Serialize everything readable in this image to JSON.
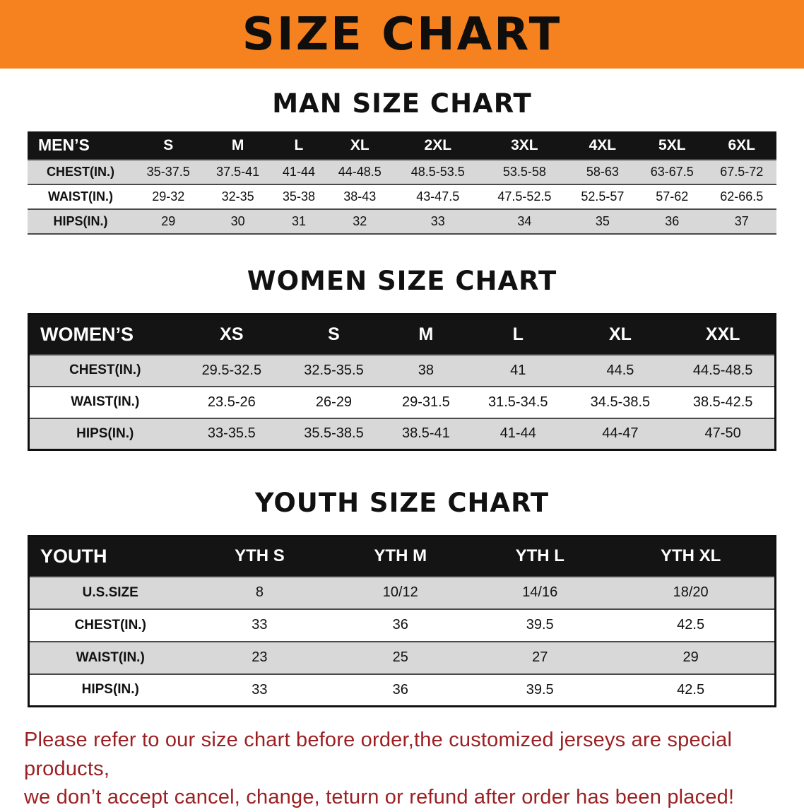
{
  "banner": {
    "title": "SIZE CHART",
    "bg_color": "#f5821f",
    "text_color": "#0f0e0c"
  },
  "men": {
    "heading": "MAN SIZE CHART",
    "header": [
      "MEN’S",
      "S",
      "M",
      "L",
      "XL",
      "2XL",
      "3XL",
      "4XL",
      "5XL",
      "6XL"
    ],
    "rows": [
      [
        "CHEST(IN.)",
        "35-37.5",
        "37.5-41",
        "41-44",
        "44-48.5",
        "48.5-53.5",
        "53.5-58",
        "58-63",
        "63-67.5",
        "67.5-72"
      ],
      [
        "WAIST(IN.)",
        "29-32",
        "32-35",
        "35-38",
        "38-43",
        "43-47.5",
        "47.5-52.5",
        "52.5-57",
        "57-62",
        "62-66.5"
      ],
      [
        "HIPS(IN.)",
        "29",
        "30",
        "31",
        "32",
        "33",
        "34",
        "35",
        "36",
        "37"
      ]
    ]
  },
  "women": {
    "heading": "WOMEN SIZE CHART",
    "header": [
      "WOMEN’S",
      "XS",
      "S",
      "M",
      "L",
      "XL",
      "XXL"
    ],
    "rows": [
      [
        "CHEST(IN.)",
        "29.5-32.5",
        "32.5-35.5",
        "38",
        "41",
        "44.5",
        "44.5-48.5"
      ],
      [
        "WAIST(IN.)",
        "23.5-26",
        "26-29",
        "29-31.5",
        "31.5-34.5",
        "34.5-38.5",
        "38.5-42.5"
      ],
      [
        "HIPS(IN.)",
        "33-35.5",
        "35.5-38.5",
        "38.5-41",
        "41-44",
        "44-47",
        "47-50"
      ]
    ]
  },
  "youth": {
    "heading": "YOUTH SIZE CHART",
    "header": [
      "YOUTH",
      "YTH S",
      "YTH M",
      "YTH L",
      "YTH XL"
    ],
    "rows": [
      [
        "U.S.SIZE",
        "8",
        "10/12",
        "14/16",
        "18/20"
      ],
      [
        "CHEST(IN.)",
        "33",
        "36",
        "39.5",
        "42.5"
      ],
      [
        "WAIST(IN.)",
        "23",
        "25",
        "27",
        "29"
      ],
      [
        "HIPS(IN.)",
        "33",
        "36",
        "39.5",
        "42.5"
      ]
    ]
  },
  "disclaimer": {
    "line1": "Please refer to our size chart before order,the customized jerseys are special products,",
    "line2": "we don’t accept cancel, change, teturn or refund after order has been placed!",
    "text_color": "#9c2023"
  }
}
